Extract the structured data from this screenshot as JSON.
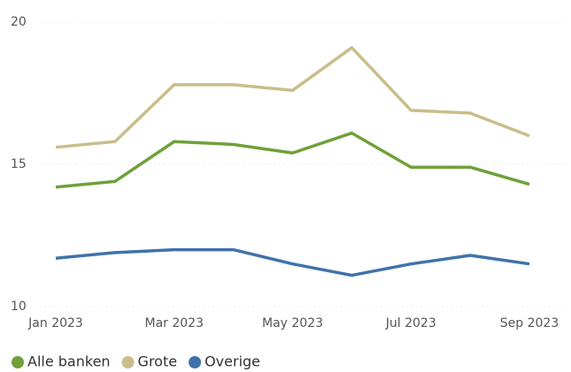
{
  "chart_data": {
    "type": "line",
    "categories": [
      "Jan 2023",
      null,
      "Mar 2023",
      null,
      "May 2023",
      null,
      "Jul 2023",
      null,
      "Sep 2023"
    ],
    "series": [
      {
        "name": "Alle banken",
        "color": "#70a03a",
        "values": [
          14.2,
          14.4,
          15.8,
          15.7,
          15.4,
          16.1,
          14.9,
          14.9,
          14.3
        ]
      },
      {
        "name": "Grote",
        "color": "#c9bd8a",
        "values": [
          15.6,
          15.8,
          17.8,
          17.8,
          17.6,
          19.1,
          16.9,
          16.8,
          16.0
        ]
      },
      {
        "name": "Overige",
        "color": "#3f72aa",
        "values": [
          11.7,
          11.9,
          12.0,
          12.0,
          11.5,
          11.1,
          11.5,
          11.8,
          11.5
        ]
      }
    ],
    "ylim": [
      10,
      20
    ],
    "yticks": [
      10,
      15,
      20
    ],
    "grid": true,
    "legend": "bottom-left"
  }
}
